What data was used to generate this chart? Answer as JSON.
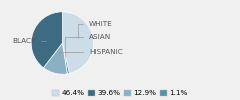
{
  "labels": [
    "WHITE",
    "ASIAN",
    "HISPANIC",
    "BLACK"
  ],
  "values": [
    46.4,
    1.1,
    12.9,
    39.6
  ],
  "colors": [
    "#cddde8",
    "#5c8faa",
    "#8ab0c2",
    "#3d6b82"
  ],
  "legend_order_labels": [
    "46.4%",
    "39.6%",
    "12.9%",
    "1.1%"
  ],
  "legend_order_colors": [
    "#cddde8",
    "#3d6b82",
    "#8ab0c2",
    "#5c8faa"
  ],
  "label_fontsize": 5.2,
  "legend_fontsize": 5.2,
  "startangle": 90,
  "bg_color": "#f0f0f0"
}
